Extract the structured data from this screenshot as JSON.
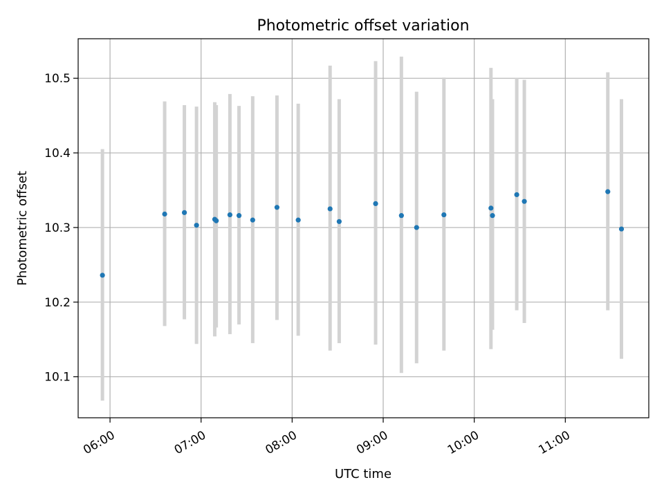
{
  "chart_data": {
    "type": "scatter",
    "title": "Photometric offset variation",
    "xlabel": "UTC time",
    "ylabel": "Photometric offset",
    "x_axis_type": "time",
    "xlim": [
      "05:39",
      "11:55"
    ],
    "ylim": [
      10.045,
      10.553
    ],
    "x_ticks": [
      "06:00",
      "07:00",
      "08:00",
      "09:00",
      "10:00",
      "11:00"
    ],
    "y_ticks": [
      10.1,
      10.2,
      10.3,
      10.4,
      10.5
    ],
    "y_tick_labels": [
      "10.1",
      "10.2",
      "10.3",
      "10.4",
      "10.5"
    ],
    "grid": true,
    "legend": "none",
    "series": [
      {
        "marker_color": "#1f77b4",
        "errorbar_color": "#d3d3d3",
        "points": [
          {
            "x": "05:55",
            "y": 10.236,
            "ylow": 10.068,
            "yhigh": 10.405
          },
          {
            "x": "06:36",
            "y": 10.318,
            "ylow": 10.168,
            "yhigh": 10.469
          },
          {
            "x": "06:49",
            "y": 10.32,
            "ylow": 10.177,
            "yhigh": 10.464
          },
          {
            "x": "06:57",
            "y": 10.303,
            "ylow": 10.144,
            "yhigh": 10.462
          },
          {
            "x": "07:09",
            "y": 10.311,
            "ylow": 10.154,
            "yhigh": 10.468
          },
          {
            "x": "07:10",
            "y": 10.309,
            "ylow": 10.166,
            "yhigh": 10.464
          },
          {
            "x": "07:19",
            "y": 10.317,
            "ylow": 10.157,
            "yhigh": 10.479
          },
          {
            "x": "07:25",
            "y": 10.316,
            "ylow": 10.17,
            "yhigh": 10.463
          },
          {
            "x": "07:34",
            "y": 10.31,
            "ylow": 10.145,
            "yhigh": 10.476
          },
          {
            "x": "07:50",
            "y": 10.327,
            "ylow": 10.176,
            "yhigh": 10.477
          },
          {
            "x": "08:04",
            "y": 10.31,
            "ylow": 10.155,
            "yhigh": 10.466
          },
          {
            "x": "08:25",
            "y": 10.325,
            "ylow": 10.135,
            "yhigh": 10.517
          },
          {
            "x": "08:31",
            "y": 10.308,
            "ylow": 10.145,
            "yhigh": 10.472
          },
          {
            "x": "08:55",
            "y": 10.332,
            "ylow": 10.143,
            "yhigh": 10.523
          },
          {
            "x": "09:12",
            "y": 10.316,
            "ylow": 10.105,
            "yhigh": 10.529
          },
          {
            "x": "09:22",
            "y": 10.3,
            "ylow": 10.118,
            "yhigh": 10.482
          },
          {
            "x": "09:40",
            "y": 10.317,
            "ylow": 10.135,
            "yhigh": 10.501
          },
          {
            "x": "10:11",
            "y": 10.326,
            "ylow": 10.137,
            "yhigh": 10.514
          },
          {
            "x": "10:12",
            "y": 10.316,
            "ylow": 10.163,
            "yhigh": 10.472
          },
          {
            "x": "10:28",
            "y": 10.344,
            "ylow": 10.189,
            "yhigh": 10.5
          },
          {
            "x": "10:33",
            "y": 10.335,
            "ylow": 10.172,
            "yhigh": 10.498
          },
          {
            "x": "11:28",
            "y": 10.348,
            "ylow": 10.189,
            "yhigh": 10.508
          },
          {
            "x": "11:37",
            "y": 10.298,
            "ylow": 10.124,
            "yhigh": 10.472
          }
        ]
      }
    ]
  }
}
